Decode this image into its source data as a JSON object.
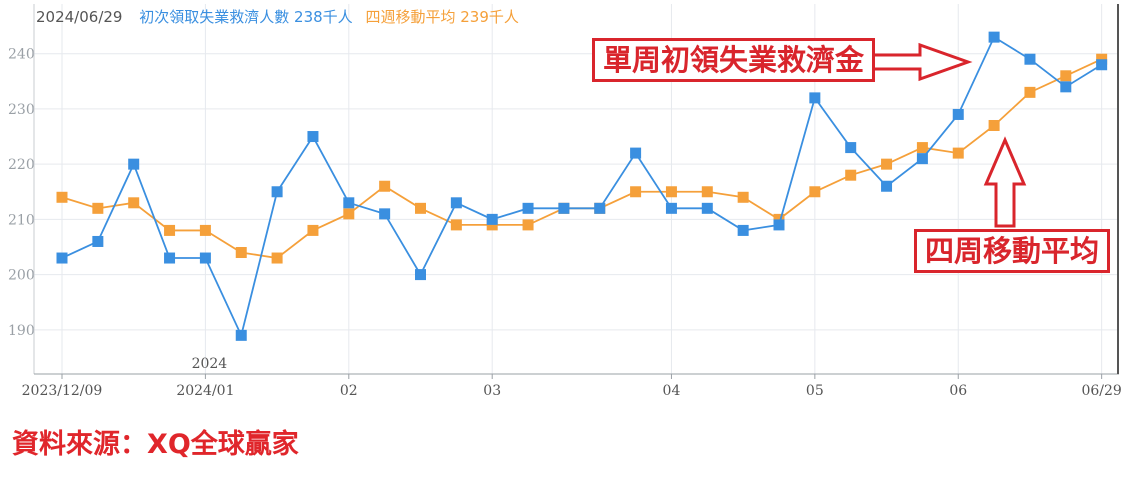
{
  "legend": {
    "date": "2024/06/29",
    "series1_label": "初次領取失業救濟人數",
    "series1_value": "238千人",
    "series2_label": "四週移動平均",
    "series2_value": "239千人"
  },
  "annotations": {
    "weekly_label": "單周初領失業救濟金",
    "average_label": "四周移動平均"
  },
  "source": "資料來源：XQ全球贏家",
  "colors": {
    "weekly": "#3a8fe0",
    "average": "#f5a03a",
    "annotation": "#d9252c"
  },
  "chart_data": {
    "type": "line",
    "x": [
      "2023/12/09",
      "2023/12/16",
      "2023/12/23",
      "2023/12/30",
      "2024/01/06",
      "2024/01/13",
      "2024/01/20",
      "2024/01/27",
      "2024/02/03",
      "2024/02/10",
      "2024/02/17",
      "2024/02/24",
      "2024/03/02",
      "2024/03/09",
      "2024/03/16",
      "2024/03/23",
      "2024/03/30",
      "2024/04/06",
      "2024/04/13",
      "2024/04/20",
      "2024/04/27",
      "2024/05/04",
      "2024/05/11",
      "2024/05/18",
      "2024/05/25",
      "2024/06/01",
      "2024/06/08",
      "2024/06/15",
      "2024/06/22",
      "2024/06/29"
    ],
    "series": [
      {
        "name": "初次領取失業救濟人數",
        "values": [
          203,
          206,
          220,
          203,
          203,
          189,
          215,
          225,
          213,
          211,
          200,
          213,
          210,
          212,
          212,
          212,
          222,
          212,
          212,
          208,
          209,
          232,
          223,
          216,
          221,
          229,
          243,
          239,
          234,
          238
        ]
      },
      {
        "name": "四週移動平均",
        "values": [
          214,
          212,
          213,
          208,
          208,
          204,
          203,
          208,
          211,
          216,
          212,
          209,
          209,
          209,
          212,
          212,
          215,
          215,
          215,
          214,
          210,
          215,
          218,
          220,
          223,
          222,
          227,
          233,
          236,
          239
        ]
      }
    ],
    "x_ticks": [
      {
        "x": "2023/12/09",
        "label": "2023/12/09"
      },
      {
        "x": "2024/01/06",
        "label": "2024/01"
      },
      {
        "x": "2024/02/03",
        "label": "02"
      },
      {
        "x": "2024/03/02",
        "label": "03"
      },
      {
        "x": "2024/04/06",
        "label": "04"
      },
      {
        "x": "2024/05/04",
        "label": "05"
      },
      {
        "x": "2024/06/01",
        "label": "06"
      },
      {
        "x": "2024/06/29",
        "label": "06/29"
      }
    ],
    "year_label": "2024",
    "y_ticks": [
      190,
      200,
      210,
      220,
      230,
      240
    ],
    "ylim": [
      182,
      249
    ],
    "grid": true
  }
}
